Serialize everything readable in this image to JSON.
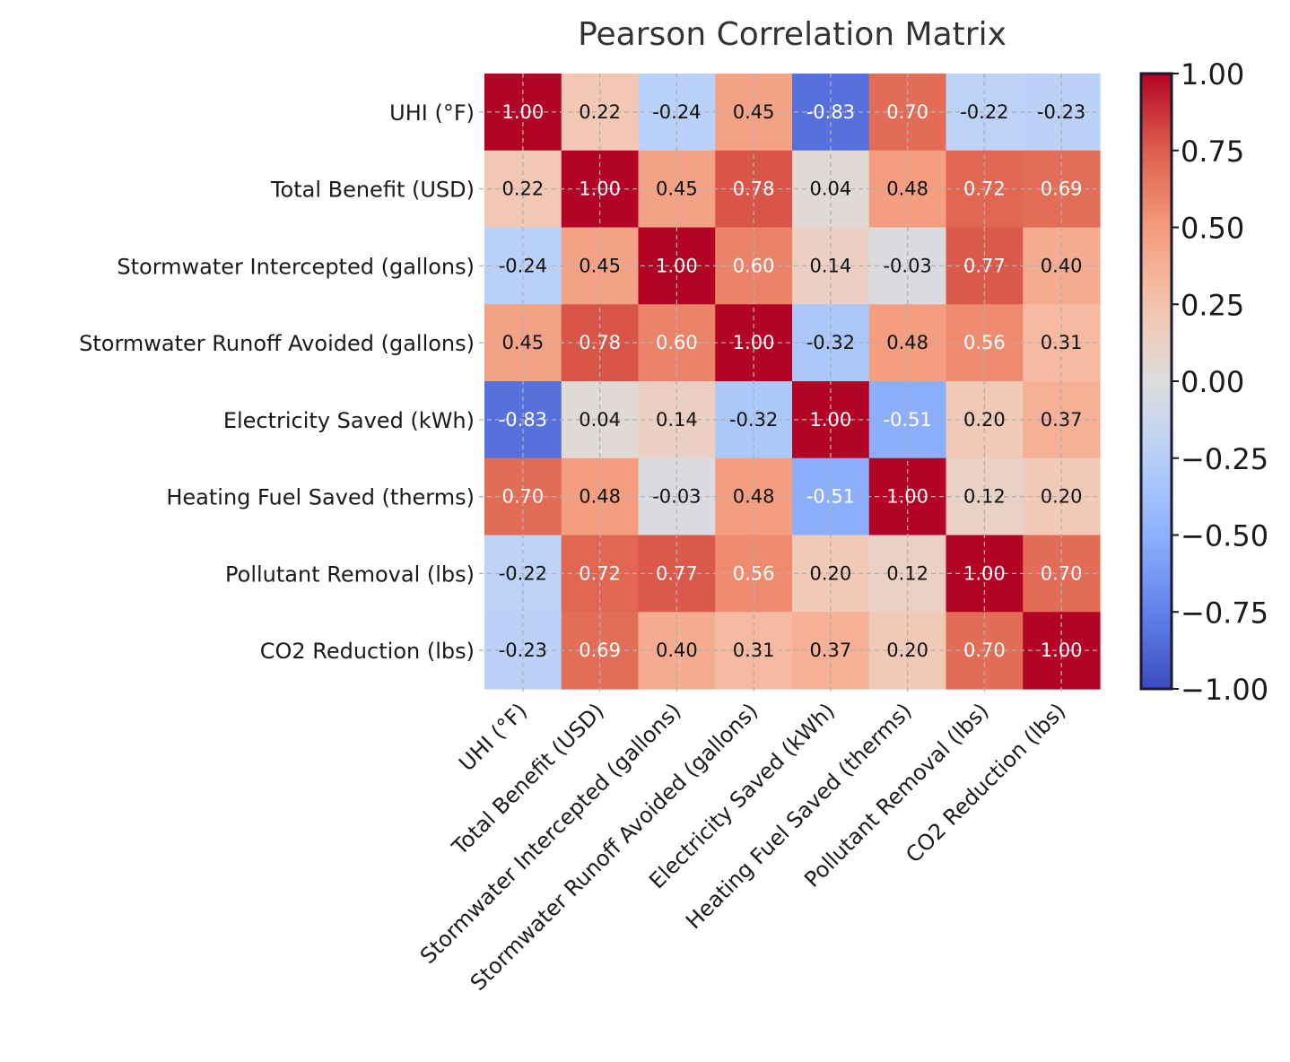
{
  "chart_data": {
    "type": "heatmap",
    "title": "Pearson Correlation Matrix",
    "labels": [
      "UHI (°F)",
      "Total Benefit (USD)",
      "Stormwater Intercepted (gallons)",
      "Stormwater Runoff Avoided (gallons)",
      "Electricity Saved (kWh)",
      "Heating Fuel Saved (therms)",
      "Pollutant Removal (lbs)",
      "CO2 Reduction (lbs)"
    ],
    "values": [
      [
        1.0,
        0.22,
        -0.24,
        0.45,
        -0.83,
        0.7,
        -0.22,
        -0.23
      ],
      [
        0.22,
        1.0,
        0.45,
        0.78,
        0.04,
        0.48,
        0.72,
        0.69
      ],
      [
        -0.24,
        0.45,
        1.0,
        0.6,
        0.14,
        -0.03,
        0.77,
        0.4
      ],
      [
        0.45,
        0.78,
        0.6,
        1.0,
        -0.32,
        0.48,
        0.56,
        0.31
      ],
      [
        -0.83,
        0.04,
        0.14,
        -0.32,
        1.0,
        -0.51,
        0.2,
        0.37
      ],
      [
        0.7,
        0.48,
        -0.03,
        0.48,
        -0.51,
        1.0,
        0.12,
        0.2
      ],
      [
        -0.22,
        0.72,
        0.77,
        0.56,
        0.2,
        0.12,
        1.0,
        0.7
      ],
      [
        -0.23,
        0.69,
        0.4,
        0.31,
        0.37,
        0.2,
        0.7,
        1.0
      ]
    ],
    "value_format_decimals": 2,
    "colormap": "coolwarm",
    "vmin": -1.0,
    "vmax": 1.0,
    "grid": true,
    "colorbar": {
      "ticks": [
        "1.00",
        "0.75",
        "0.50",
        "0.25",
        "0.00",
        "−0.25",
        "−0.50",
        "−0.75",
        "−1.00"
      ],
      "tick_values": [
        1.0,
        0.75,
        0.5,
        0.25,
        0.0,
        -0.25,
        -0.5,
        -0.75,
        -1.0
      ]
    }
  }
}
